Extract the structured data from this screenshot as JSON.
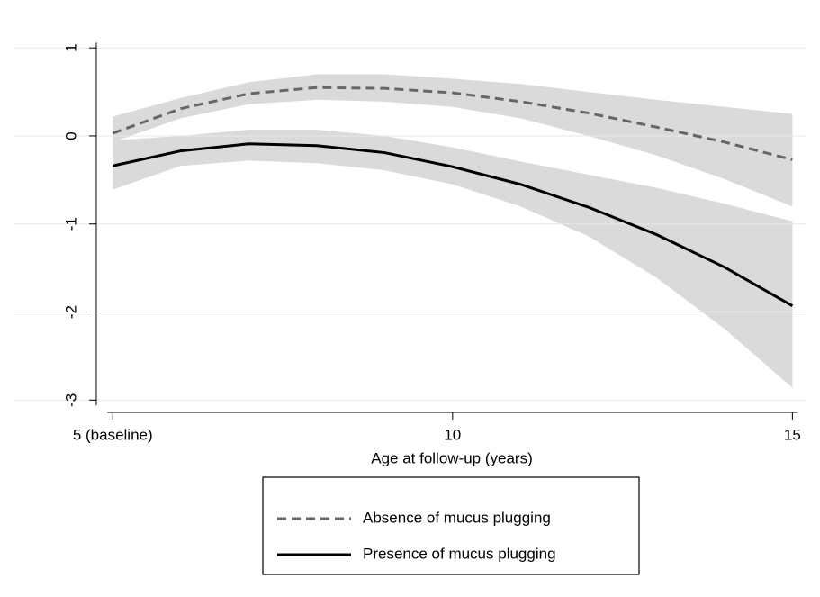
{
  "chart_data": {
    "type": "line",
    "x_label": "Age at follow-up (years)",
    "x": [
      5,
      6,
      7,
      8,
      9,
      10,
      11,
      12,
      13,
      14,
      15
    ],
    "xlim": [
      3.54,
      15.22
    ],
    "xticks": [
      {
        "value": 5,
        "label": "5 (baseline)"
      },
      10,
      15
    ],
    "ylim": [
      -3.13,
      1.36
    ],
    "yticks": [
      1,
      0,
      -1,
      -2,
      -3
    ],
    "grid": true,
    "band_color": "#dadada",
    "series": [
      {
        "name": "Absence of mucus plugging",
        "color": "#666666",
        "dash": true,
        "values": [
          0.03,
          0.31,
          0.48,
          0.55,
          0.54,
          0.49,
          0.39,
          0.26,
          0.1,
          -0.07,
          -0.27
        ],
        "upper": [
          0.22,
          0.43,
          0.61,
          0.7,
          0.7,
          0.65,
          0.59,
          0.5,
          0.41,
          0.33,
          0.25
        ],
        "lower": [
          -0.07,
          0.2,
          0.36,
          0.41,
          0.39,
          0.33,
          0.2,
          0.0,
          -0.22,
          -0.49,
          -0.8
        ]
      },
      {
        "name": "Presence of mucus plugging",
        "color": "#000000",
        "dash": false,
        "values": [
          -0.34,
          -0.17,
          -0.09,
          -0.11,
          -0.19,
          -0.35,
          -0.55,
          -0.81,
          -1.12,
          -1.49,
          -1.93
        ],
        "upper": [
          -0.05,
          0.0,
          0.07,
          0.07,
          0.0,
          -0.13,
          -0.29,
          -0.44,
          -0.59,
          -0.77,
          -0.97
        ],
        "lower": [
          -0.61,
          -0.34,
          -0.28,
          -0.31,
          -0.39,
          -0.55,
          -0.8,
          -1.14,
          -1.61,
          -2.19,
          -2.86
        ]
      }
    ]
  }
}
